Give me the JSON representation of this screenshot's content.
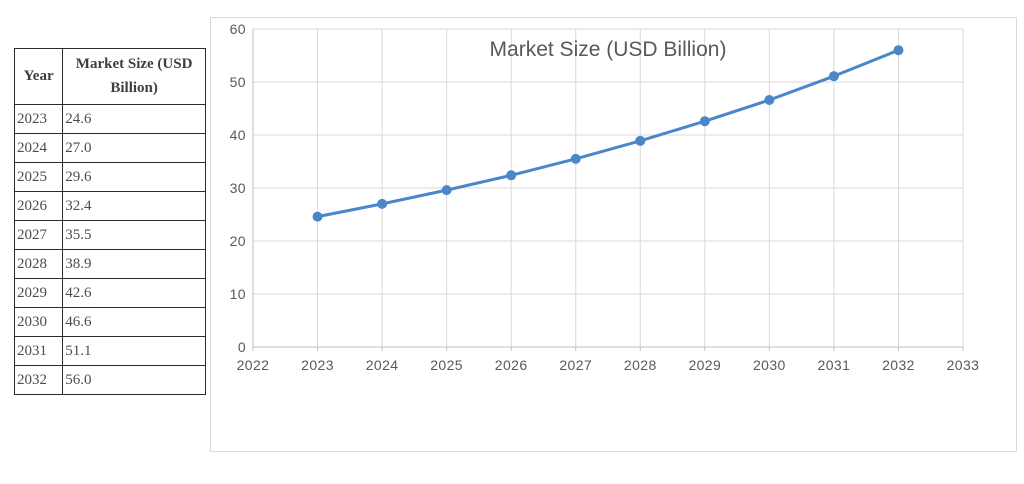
{
  "table": {
    "headers": [
      "Year",
      "Market Size (USD Billion)"
    ],
    "rows": [
      [
        "2023",
        "24.6"
      ],
      [
        "2024",
        "27.0"
      ],
      [
        "2025",
        "29.6"
      ],
      [
        "2026",
        "32.4"
      ],
      [
        "2027",
        "35.5"
      ],
      [
        "2028",
        "38.9"
      ],
      [
        "2029",
        "42.6"
      ],
      [
        "2030",
        "46.6"
      ],
      [
        "2031",
        "51.1"
      ],
      [
        "2032",
        "56.0"
      ]
    ]
  },
  "chart_data": {
    "type": "line",
    "title": "Market Size (USD Billion)",
    "x": [
      2023,
      2024,
      2025,
      2026,
      2027,
      2028,
      2029,
      2030,
      2031,
      2032
    ],
    "values": [
      24.6,
      27.0,
      29.6,
      32.4,
      35.5,
      38.9,
      42.6,
      46.6,
      51.1,
      56.0
    ],
    "xlabel": "",
    "ylabel": "",
    "xlim": [
      2022,
      2033
    ],
    "ylim": [
      0,
      60
    ],
    "x_ticks": [
      2022,
      2023,
      2024,
      2025,
      2026,
      2027,
      2028,
      2029,
      2030,
      2031,
      2032,
      2033
    ],
    "y_ticks": [
      0,
      10,
      20,
      30,
      40,
      50,
      60
    ],
    "grid": true,
    "legend": false,
    "series_color": "#4a86c8",
    "marker": "circle"
  },
  "colors": {
    "gridline": "#d9d9d9",
    "axis_line": "#bfbfbf",
    "chart_text": "#595959",
    "table_border": "#2b2b2b",
    "background": "#ffffff"
  }
}
